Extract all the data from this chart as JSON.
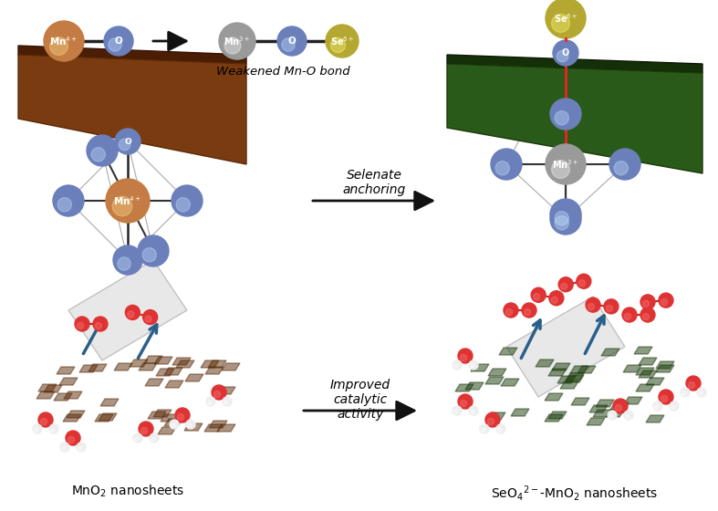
{
  "title": "",
  "bg_color": "#ffffff",
  "top_row": {
    "mn4_label": "Mn$^{4+}$",
    "mn3_label": "Mn$^{3+}$",
    "se6_label": "Se$^{6+}$",
    "o_label": "O",
    "weakened_text": "Weakened Mn-O bond",
    "mn4_color": "#c47c44",
    "mn3_color": "#9a9a9a",
    "se_color": "#b5a832",
    "o_color": "#6b7fba",
    "bond_color": "#222222"
  },
  "middle_row": {
    "selenate_text": "Selenate\nanchoring",
    "mn4_oct_color": "#c47c44",
    "mn3_oct_color": "#9a9a9a",
    "o_oct_color": "#6b7fba",
    "red_bond_color": "#ee2222"
  },
  "bottom_row": {
    "improved_text": "Improved\ncatalytic\nactivity",
    "mno2_label": "MnO$_2$ nanosheets",
    "seo4_mno2_label": "SeO$_4$$^{2-}$-MnO$_2$ nanosheets",
    "brown_sheet_color": "#8B4513",
    "green_sheet_color": "#2d5a1b",
    "o2_red": "#dd2222",
    "water_red": "#dd2222",
    "water_white": "#ffffff",
    "arrow_color": "#2a5f8a"
  },
  "arrow_color": "#111111"
}
